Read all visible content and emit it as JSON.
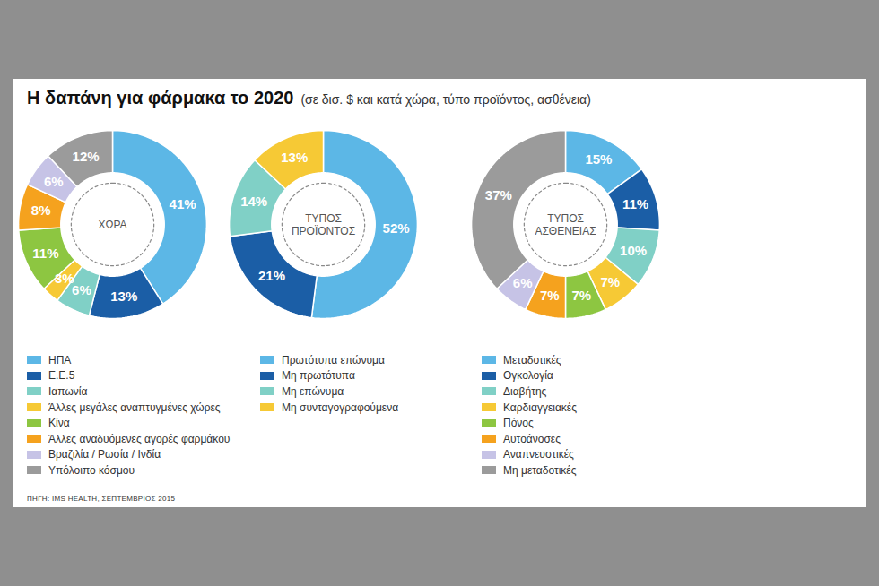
{
  "title": "Η δαπάνη για φάρμακα το 2020",
  "subtitle": "(σε δισ. $ και κατά χώρα, τύπο προϊόντος, ασθένεια)",
  "source": "ΠΗΓΗ: IMS HEALTH, ΣΕΠΤΕΜΒΡΙΟΣ 2015",
  "chart_data": [
    {
      "type": "donut",
      "title": "ΧΩΡΑ",
      "categories": [
        "ΗΠΑ",
        "Ε.Ε.5",
        "Ιαπωνία",
        "Άλλες μεγάλες αναπτυγμένες χώρες",
        "Κίνα",
        "Άλλες αναδυόμενες αγορές φαρμάκου",
        "Βραζιλία / Ρωσία / Ινδία",
        "Υπόλοιπο κόσμου"
      ],
      "values": [
        41,
        13,
        6,
        3,
        11,
        8,
        6,
        12
      ],
      "value_labels": [
        "41%",
        "13%",
        "6%",
        "3%",
        "11%",
        "8%",
        "6%",
        "12%"
      ],
      "colors": [
        "#5cb7e6",
        "#1b5ea6",
        "#80d0c6",
        "#f6c935",
        "#8dc641",
        "#f5a21e",
        "#c6c3e6",
        "#9b9b9b"
      ],
      "data_labels": true,
      "legend": "bottom"
    },
    {
      "type": "donut",
      "title": "ΤΥΠΟΣ\nΠΡΟΪΟΝΤΟΣ",
      "categories": [
        "Πρωτότυπα επώνυμα",
        "Μη πρωτότυπα",
        "Μη επώνυμα",
        "Μη συνταγογραφούμενα"
      ],
      "values": [
        52,
        21,
        14,
        13
      ],
      "value_labels": [
        "52%",
        "21%",
        "14%",
        "13%"
      ],
      "colors": [
        "#5cb7e6",
        "#1b5ea6",
        "#80d0c6",
        "#f6c935"
      ],
      "data_labels": true,
      "legend": "bottom"
    },
    {
      "type": "donut",
      "title": "ΤΥΠΟΣ\nΑΣΘΕΝΕΙΑΣ",
      "categories": [
        "Μεταδοτικές",
        "Ογκολογία",
        "Διαβήτης",
        "Καρδιαγγειακές",
        "Πόνος",
        "Αυτοάνοσες",
        "Αναπνευστικές",
        "Μη μεταδοτικές"
      ],
      "values": [
        15,
        11,
        10,
        7,
        7,
        7,
        6,
        37
      ],
      "value_labels": [
        "15%",
        "11%",
        "10%",
        "7%",
        "7%",
        "7%",
        "6%",
        "37%"
      ],
      "colors": [
        "#5cb7e6",
        "#1b5ea6",
        "#80d0c6",
        "#f6c935",
        "#8dc641",
        "#f5a21e",
        "#c6c3e6",
        "#9b9b9b"
      ],
      "data_labels": true,
      "legend": "bottom"
    }
  ]
}
